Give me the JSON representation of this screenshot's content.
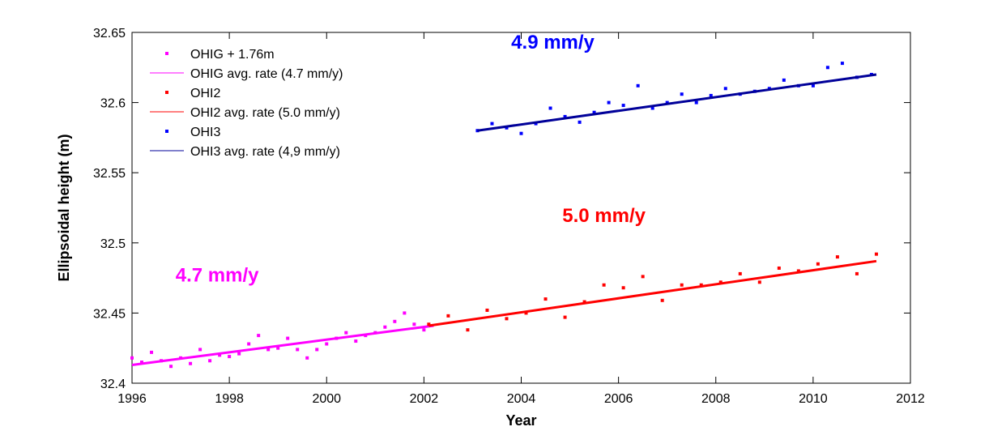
{
  "chart_data": {
    "type": "scatter",
    "title": "",
    "xlabel": "Year",
    "ylabel": "Ellipsoidal height (m)",
    "xlim": [
      1996,
      2012
    ],
    "ylim": [
      32.4,
      32.65
    ],
    "xticks": [
      "1996",
      "1998",
      "2000",
      "2002",
      "2004",
      "2006",
      "2008",
      "2010",
      "2012"
    ],
    "yticks": [
      "32.4",
      "32.45",
      "32.5",
      "32.55",
      "32.6",
      "32.65"
    ],
    "grid": false,
    "legend_position": "top-left",
    "series": [
      {
        "name": "OHIG + 1.76m",
        "kind": "points",
        "color": "#ff00ff",
        "x": [
          1996.0,
          1996.2,
          1996.4,
          1996.6,
          1996.8,
          1997.0,
          1997.2,
          1997.4,
          1997.6,
          1997.8,
          1998.0,
          1998.2,
          1998.4,
          1998.6,
          1998.8,
          1999.0,
          1999.2,
          1999.4,
          1999.6,
          1999.8,
          2000.0,
          2000.2,
          2000.4,
          2000.6,
          2000.8,
          2001.0,
          2001.2,
          2001.4,
          2001.6,
          2001.8,
          2002.0
        ],
        "y": [
          32.418,
          32.415,
          32.422,
          32.416,
          32.412,
          32.418,
          32.414,
          32.424,
          32.416,
          32.42,
          32.419,
          32.421,
          32.428,
          32.434,
          32.424,
          32.425,
          32.432,
          32.424,
          32.418,
          32.424,
          32.428,
          32.432,
          32.436,
          32.43,
          32.434,
          32.436,
          32.44,
          32.444,
          32.45,
          32.442,
          32.438
        ]
      },
      {
        "name": "OHIG avg. rate (4.7 mm/y)",
        "kind": "line",
        "color": "#ff00ff",
        "x": [
          1996.0,
          2002.2
        ],
        "y": [
          32.413,
          32.441
        ]
      },
      {
        "name": "OHI2",
        "kind": "points",
        "color": "#ff0000",
        "x": [
          2002.1,
          2002.5,
          2002.9,
          2003.3,
          2003.7,
          2004.1,
          2004.5,
          2004.9,
          2005.3,
          2005.7,
          2006.1,
          2006.5,
          2006.9,
          2007.3,
          2007.7,
          2008.1,
          2008.5,
          2008.9,
          2009.3,
          2009.7,
          2010.1,
          2010.5,
          2010.9,
          2011.3
        ],
        "y": [
          32.442,
          32.448,
          32.438,
          32.452,
          32.446,
          32.45,
          32.46,
          32.447,
          32.458,
          32.47,
          32.468,
          32.476,
          32.459,
          32.47,
          32.47,
          32.472,
          32.478,
          32.472,
          32.482,
          32.48,
          32.485,
          32.49,
          32.478,
          32.492
        ]
      },
      {
        "name": "OHI2 avg. rate (5.0 mm/y)",
        "kind": "line",
        "color": "#ff0000",
        "x": [
          2002.1,
          2011.3
        ],
        "y": [
          32.441,
          32.487
        ]
      },
      {
        "name": "OHI3",
        "kind": "points",
        "color": "#0000ff",
        "x": [
          2003.1,
          2003.4,
          2003.7,
          2004.0,
          2004.3,
          2004.6,
          2004.9,
          2005.2,
          2005.5,
          2005.8,
          2006.1,
          2006.4,
          2006.7,
          2007.0,
          2007.3,
          2007.6,
          2007.9,
          2008.2,
          2008.5,
          2008.8,
          2009.1,
          2009.4,
          2009.7,
          2010.0,
          2010.3,
          2010.6,
          2010.9,
          2011.2
        ],
        "y": [
          32.58,
          32.585,
          32.582,
          32.578,
          32.585,
          32.596,
          32.59,
          32.586,
          32.593,
          32.6,
          32.598,
          32.612,
          32.596,
          32.6,
          32.606,
          32.6,
          32.605,
          32.61,
          32.606,
          32.608,
          32.61,
          32.616,
          32.612,
          32.612,
          32.625,
          32.628,
          32.618,
          32.62
        ]
      },
      {
        "name": "OHI3 avg. rate (4,9 mm/y)",
        "kind": "line",
        "color": "#000099",
        "x": [
          2003.1,
          2011.3
        ],
        "y": [
          32.58,
          32.62
        ]
      }
    ],
    "annotations": [
      {
        "text": "4.7 mm/y",
        "x": 1997.75,
        "y": 32.4725,
        "color": "#ff00ff"
      },
      {
        "text": "5.0 mm/y",
        "x": 2005.7,
        "y": 32.515,
        "color": "#ff0000"
      },
      {
        "text": "4.9 mm/y",
        "x": 2004.65,
        "y": 32.6385,
        "color": "#0000ff"
      }
    ]
  }
}
